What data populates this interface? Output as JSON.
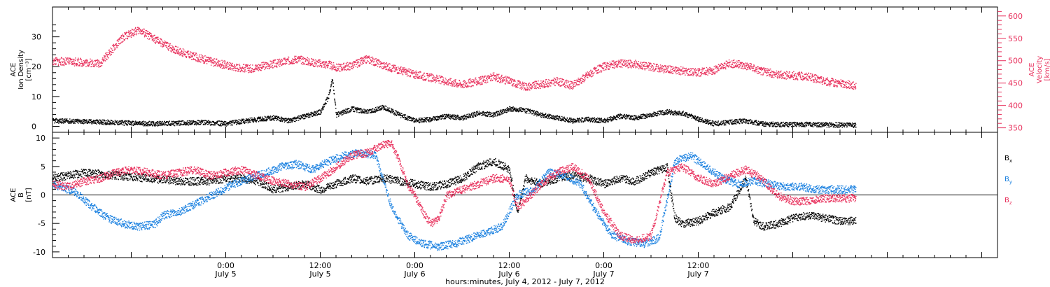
{
  "chart_data": [
    {
      "type": "scatter",
      "panel": "top",
      "left_axis_label": [
        "ACE",
        "Ion Density",
        "[cm⁻³]"
      ],
      "right_axis_label": [
        "ACE",
        "Velocity",
        "[km/s]"
      ],
      "left_ylim": [
        -2,
        40
      ],
      "left_ticks": [
        0,
        10,
        20,
        30
      ],
      "right_ylim": [
        340,
        620
      ],
      "right_ticks": [
        350,
        400,
        450,
        500,
        550,
        600
      ],
      "colors": {
        "density": "#000000",
        "velocity": "#e8305c"
      },
      "series": [
        {
          "axis": "left",
          "color_key": "density",
          "points": [
            [
              -22,
              2.0
            ],
            [
              -18,
              1.8
            ],
            [
              -15,
              1.5
            ],
            [
              -12,
              1.2
            ],
            [
              -9,
              1.0
            ],
            [
              -6,
              1.2
            ],
            [
              -3,
              1.5
            ],
            [
              0,
              1.0
            ],
            [
              2,
              1.8
            ],
            [
              4,
              2.5
            ],
            [
              6,
              3.0
            ],
            [
              8,
              2.0
            ],
            [
              10,
              3.5
            ],
            [
              12,
              5.0
            ],
            [
              13,
              10.0
            ],
            [
              13.5,
              16.0
            ],
            [
              14,
              4.0
            ],
            [
              16,
              6.0
            ],
            [
              18,
              5.0
            ],
            [
              20,
              6.5
            ],
            [
              22,
              4.0
            ],
            [
              24,
              2.0
            ],
            [
              26,
              2.5
            ],
            [
              28,
              3.5
            ],
            [
              30,
              3.0
            ],
            [
              32,
              4.5
            ],
            [
              34,
              4.0
            ],
            [
              36,
              6.0
            ],
            [
              38,
              5.5
            ],
            [
              40,
              4.0
            ],
            [
              42,
              3.0
            ],
            [
              44,
              2.0
            ],
            [
              46,
              2.5
            ],
            [
              48,
              2.0
            ],
            [
              50,
              3.5
            ],
            [
              52,
              3.0
            ],
            [
              54,
              4.0
            ],
            [
              56,
              5.0
            ],
            [
              58,
              4.5
            ],
            [
              60,
              2.5
            ],
            [
              62,
              1.0
            ],
            [
              64,
              1.5
            ],
            [
              66,
              2.0
            ],
            [
              68,
              1.0
            ],
            [
              70,
              0.8
            ],
            [
              72,
              0.8
            ],
            [
              74,
              0.8
            ],
            [
              76,
              0.7
            ],
            [
              78,
              0.6
            ],
            [
              80,
              0.5
            ]
          ]
        },
        {
          "axis": "right",
          "color_key": "velocity",
          "points": [
            [
              -22,
              500
            ],
            [
              -19,
              498
            ],
            [
              -16,
              495
            ],
            [
              -13,
              555
            ],
            [
              -11,
              570
            ],
            [
              -9,
              548
            ],
            [
              -7,
              530
            ],
            [
              -5,
              515
            ],
            [
              -3,
              505
            ],
            [
              -1,
              495
            ],
            [
              1,
              487
            ],
            [
              3,
              483
            ],
            [
              5,
              490
            ],
            [
              7,
              497
            ],
            [
              9,
              505
            ],
            [
              11,
              497
            ],
            [
              13,
              492
            ],
            [
              14,
              485
            ],
            [
              16,
              490
            ],
            [
              18,
              505
            ],
            [
              20,
              490
            ],
            [
              22,
              480
            ],
            [
              24,
              470
            ],
            [
              26,
              463
            ],
            [
              28,
              455
            ],
            [
              30,
              448
            ],
            [
              32,
              455
            ],
            [
              34,
              465
            ],
            [
              36,
              455
            ],
            [
              38,
              443
            ],
            [
              40,
              448
            ],
            [
              42,
              455
            ],
            [
              44,
              445
            ],
            [
              46,
              470
            ],
            [
              48,
              488
            ],
            [
              50,
              495
            ],
            [
              52,
              493
            ],
            [
              54,
              487
            ],
            [
              56,
              482
            ],
            [
              58,
              478
            ],
            [
              60,
              475
            ],
            [
              62,
              480
            ],
            [
              64,
              495
            ],
            [
              66,
              490
            ],
            [
              68,
              478
            ],
            [
              70,
              470
            ],
            [
              72,
              468
            ],
            [
              74,
              465
            ],
            [
              76,
              455
            ],
            [
              78,
              450
            ],
            [
              80,
              445
            ]
          ]
        }
      ]
    },
    {
      "type": "scatter",
      "panel": "bottom",
      "left_axis_label": [
        "ACE",
        "B",
        "[nT]"
      ],
      "ylim": [
        -11,
        11
      ],
      "ticks": [
        -10,
        -5,
        0,
        5,
        10
      ],
      "zero_line": true,
      "legend_position": "right",
      "colors": {
        "Bx": "#000000",
        "By": "#1a80e0",
        "Bz": "#e8305c"
      },
      "series": [
        {
          "name": "Bx",
          "color_key": "Bx",
          "points": [
            [
              -22,
              3.0
            ],
            [
              -18,
              4.0
            ],
            [
              -14,
              3.5
            ],
            [
              -10,
              3.0
            ],
            [
              -6,
              2.5
            ],
            [
              -2,
              2.5
            ],
            [
              0,
              3.0
            ],
            [
              2,
              3.0
            ],
            [
              4,
              2.5
            ],
            [
              6,
              1.0
            ],
            [
              8,
              1.5
            ],
            [
              10,
              2.0
            ],
            [
              12,
              1.0
            ],
            [
              14,
              2.0
            ],
            [
              16,
              3.0
            ],
            [
              18,
              2.5
            ],
            [
              20,
              3.0
            ],
            [
              22,
              2.5
            ],
            [
              24,
              2.0
            ],
            [
              26,
              1.5
            ],
            [
              28,
              2.0
            ],
            [
              30,
              3.0
            ],
            [
              32,
              5.0
            ],
            [
              34,
              6.0
            ],
            [
              36,
              4.5
            ],
            [
              37,
              -3.0
            ],
            [
              38,
              3.0
            ],
            [
              40,
              2.0
            ],
            [
              42,
              3.0
            ],
            [
              44,
              3.5
            ],
            [
              46,
              3.0
            ],
            [
              48,
              2.0
            ],
            [
              50,
              3.0
            ],
            [
              52,
              2.5
            ],
            [
              54,
              4.0
            ],
            [
              56,
              5.0
            ],
            [
              57,
              -4.0
            ],
            [
              58,
              -5.0
            ],
            [
              60,
              -4.5
            ],
            [
              62,
              -3.0
            ],
            [
              64,
              -2.0
            ],
            [
              66,
              3.0
            ],
            [
              67,
              -4.5
            ],
            [
              68,
              -5.5
            ],
            [
              70,
              -5.0
            ],
            [
              72,
              -4.0
            ],
            [
              74,
              -3.5
            ],
            [
              76,
              -4.0
            ],
            [
              78,
              -4.5
            ],
            [
              80,
              -4.5
            ]
          ]
        },
        {
          "name": "By",
          "color_key": "By",
          "points": [
            [
              -22,
              2.0
            ],
            [
              -19,
              0.5
            ],
            [
              -17,
              -2.0
            ],
            [
              -15,
              -4.0
            ],
            [
              -13,
              -5.0
            ],
            [
              -11,
              -5.5
            ],
            [
              -9,
              -5.0
            ],
            [
              -8,
              -3.5
            ],
            [
              -6,
              -3.0
            ],
            [
              1,
              2.0
            ],
            [
              3,
              3.0
            ],
            [
              5,
              4.0
            ],
            [
              7,
              5.0
            ],
            [
              9,
              5.5
            ],
            [
              11,
              4.5
            ],
            [
              13,
              6.0
            ],
            [
              15,
              7.0
            ],
            [
              17,
              7.5
            ],
            [
              19,
              7.0
            ],
            [
              21,
              -2.0
            ],
            [
              23,
              -7.0
            ],
            [
              25,
              -8.5
            ],
            [
              27,
              -9.0
            ],
            [
              29,
              -8.5
            ],
            [
              31,
              -7.5
            ],
            [
              33,
              -6.5
            ],
            [
              35,
              -5.5
            ],
            [
              37,
              0.0
            ],
            [
              39,
              1.0
            ],
            [
              41,
              4.0
            ],
            [
              43,
              3.5
            ],
            [
              45,
              2.0
            ],
            [
              47,
              -3.0
            ],
            [
              49,
              -7.0
            ],
            [
              51,
              -8.0
            ],
            [
              53,
              -8.5
            ],
            [
              55,
              -7.5
            ],
            [
              57,
              6.0
            ],
            [
              59,
              7.0
            ],
            [
              61,
              5.0
            ],
            [
              63,
              3.0
            ],
            [
              65,
              2.0
            ],
            [
              67,
              2.5
            ],
            [
              69,
              2.0
            ],
            [
              71,
              1.5
            ],
            [
              73,
              1.5
            ],
            [
              75,
              1.0
            ],
            [
              77,
              1.0
            ],
            [
              79,
              1.0
            ],
            [
              80,
              1.0
            ]
          ]
        },
        {
          "name": "Bz",
          "color_key": "Bz",
          "points": [
            [
              -22,
              2.0
            ],
            [
              -20,
              1.5
            ],
            [
              -18,
              2.5
            ],
            [
              -16,
              3.0
            ],
            [
              -14,
              4.0
            ],
            [
              -12,
              4.5
            ],
            [
              -10,
              4.0
            ],
            [
              -8,
              3.5
            ],
            [
              -6,
              4.0
            ],
            [
              -4,
              4.5
            ],
            [
              -2,
              3.5
            ],
            [
              0,
              4.0
            ],
            [
              2,
              4.5
            ],
            [
              4,
              3.5
            ],
            [
              6,
              2.5
            ],
            [
              8,
              2.0
            ],
            [
              10,
              1.5
            ],
            [
              12,
              3.0
            ],
            [
              14,
              5.0
            ],
            [
              16,
              7.0
            ],
            [
              18,
              7.5
            ],
            [
              20,
              9.0
            ],
            [
              21,
              9.0
            ],
            [
              22,
              6.0
            ],
            [
              23,
              2.0
            ],
            [
              24,
              0.0
            ],
            [
              25,
              -3.0
            ],
            [
              26,
              -5.0
            ],
            [
              27,
              -4.0
            ],
            [
              28,
              0.0
            ],
            [
              30,
              1.0
            ],
            [
              32,
              2.0
            ],
            [
              34,
              3.0
            ],
            [
              35,
              3.0
            ],
            [
              36,
              2.5
            ],
            [
              37,
              -2.0
            ],
            [
              38,
              -1.0
            ],
            [
              40,
              2.0
            ],
            [
              42,
              4.0
            ],
            [
              44,
              5.0
            ],
            [
              46,
              3.0
            ],
            [
              48,
              -3.0
            ],
            [
              50,
              -7.0
            ],
            [
              52,
              -8.0
            ],
            [
              54,
              -7.0
            ],
            [
              56,
              4.0
            ],
            [
              58,
              5.0
            ],
            [
              60,
              3.0
            ],
            [
              62,
              2.0
            ],
            [
              64,
              3.5
            ],
            [
              66,
              4.5
            ],
            [
              68,
              3.0
            ],
            [
              70,
              0.0
            ],
            [
              72,
              -1.0
            ],
            [
              74,
              -1.0
            ],
            [
              76,
              -0.5
            ],
            [
              78,
              -0.5
            ],
            [
              80,
              -0.5
            ]
          ]
        }
      ]
    }
  ],
  "shared_x_axis": {
    "xlim": [
      -22,
      98
    ],
    "ticks": [
      {
        "x": 0,
        "time": "0:00",
        "date": "July 5"
      },
      {
        "x": 12,
        "time": "12:00",
        "date": "July 5"
      },
      {
        "x": 24,
        "time": "0:00",
        "date": "July 6"
      },
      {
        "x": 36,
        "time": "12:00",
        "date": "July 6"
      },
      {
        "x": 48,
        "time": "0:00",
        "date": "July 7"
      },
      {
        "x": 60,
        "time": "12:00",
        "date": "July 7"
      }
    ],
    "xlabel": "hours:minutes, July  4, 2012 - July  7, 2012"
  }
}
